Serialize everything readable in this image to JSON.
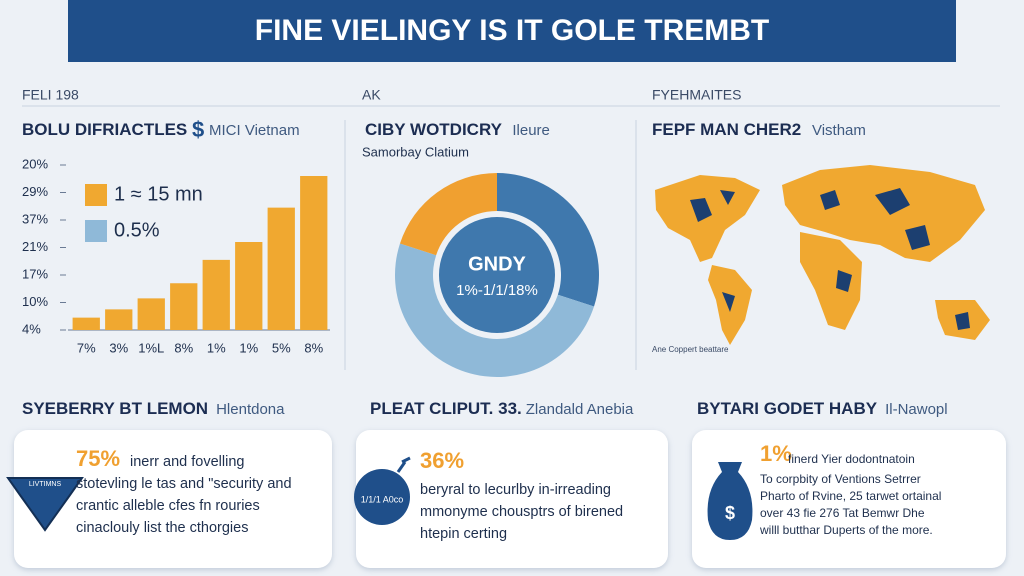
{
  "header": {
    "title": "FINE VIELINGY IS IT GOLE TREMBT"
  },
  "sections": [
    "FELI 198",
    "AK",
    "FYEHMAITES"
  ],
  "chart_data": [
    {
      "type": "bar",
      "title": "BOLU DIFRIACTLES",
      "title_symbol": "$",
      "subtitle": "MICI Vietnam",
      "categories": [
        "7%",
        "3%",
        "1%L",
        "8%",
        "1%",
        "1%",
        "5%",
        "8%"
      ],
      "values": [
        0.45,
        0.75,
        1.15,
        1.7,
        2.55,
        3.2,
        4.45,
        5.6
      ],
      "color": "#f0a830",
      "ylim": [
        0,
        6
      ],
      "yticks": [
        {
          "value": 0,
          "label": "4%"
        },
        {
          "value": 1,
          "label": "10%"
        },
        {
          "value": 2,
          "label": "17%"
        },
        {
          "value": 3,
          "label": "21%"
        },
        {
          "value": 4,
          "label": "37%"
        },
        {
          "value": 5,
          "label": "29%"
        },
        {
          "value": 6,
          "label": "20%"
        }
      ],
      "legend": [
        {
          "label": "1 ≈ 15 mn",
          "color": "#f0a830"
        },
        {
          "label": "0.5%",
          "color": "#8fb9d8"
        }
      ]
    },
    {
      "type": "pie",
      "title": "CIBY WOTDICRY",
      "title_note": "Ileure",
      "subtitle": "Samorbay Clatium",
      "values": [
        30,
        50,
        20
      ],
      "colors": [
        "#3f78ad",
        "#8fb9d8",
        "#f0a030"
      ],
      "center_label": "GNDY",
      "center_sublabel": "1%-1/1/18%"
    }
  ],
  "map": {
    "title": "FEPF MAN CHER2",
    "subtitle": "Vistham",
    "caption": "Ane Coppert beattare"
  },
  "cards": [
    {
      "title": "SYEBERRY BT LEMON",
      "title_note": "Hlentdona",
      "figure": "75%",
      "icon_label": "LIVTIMNS",
      "lines": [
        "inerr and fovelling",
        "stotevling le tas and \"security and",
        "crantic alleble cfes fn rouries",
        "cinaclouly list the cthorgies"
      ]
    },
    {
      "title": "PLEAT CLIPUT. 33.",
      "title_note": "Zlandald Anebia",
      "figure": "36%",
      "icon_label": "1/1/1 A0co",
      "lines": [
        "beryral to lecurlby in-irreading",
        "mmonyme chousptrs of birened",
        "htepin certing"
      ]
    },
    {
      "title": "BYTARI GODET HABY",
      "title_note": "Il-Nawopl",
      "figure": "1%",
      "icon_label": "$",
      "lines": [
        "finerd  Yier dodontnatoin",
        "To corpbity of Ventions Setrrer",
        "Pharto of Rvine, 25 tarwet ortainal",
        "over 43 fie 276 Tat Bemwr Dhe",
        "willl butthar Duperts of the more."
      ]
    }
  ]
}
